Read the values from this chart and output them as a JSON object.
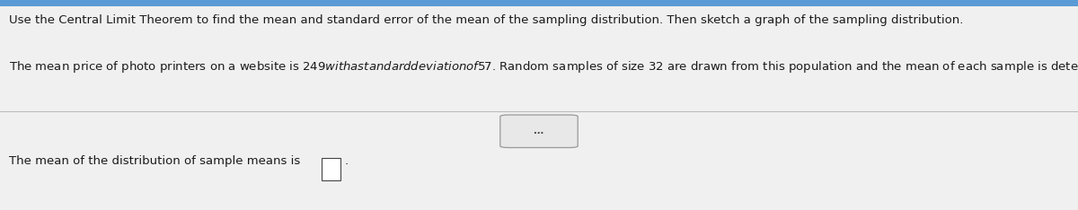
{
  "background_color": "#f0f0f0",
  "top_bar_color": "#5b9bd5",
  "line1": "Use the Central Limit Theorem to find the mean and standard error of the mean of the sampling distribution. Then sketch a graph of the sampling distribution.",
  "line2": "The mean price of photo printers on a website is $249 with a standard deviation of $57. Random samples of size 32 are drawn from this population and the mean of each sample is determined.",
  "line3": "The mean of the distribution of sample means is",
  "text_color": "#1a1a1a",
  "font_size_main": 9.5,
  "separator_color": "#bbbbbb",
  "dots_label": "...",
  "dots_box_color": "#e8e8e8",
  "dots_border_color": "#999999",
  "input_box_border": "#444444",
  "input_box_fill": "#ffffff",
  "period": "."
}
